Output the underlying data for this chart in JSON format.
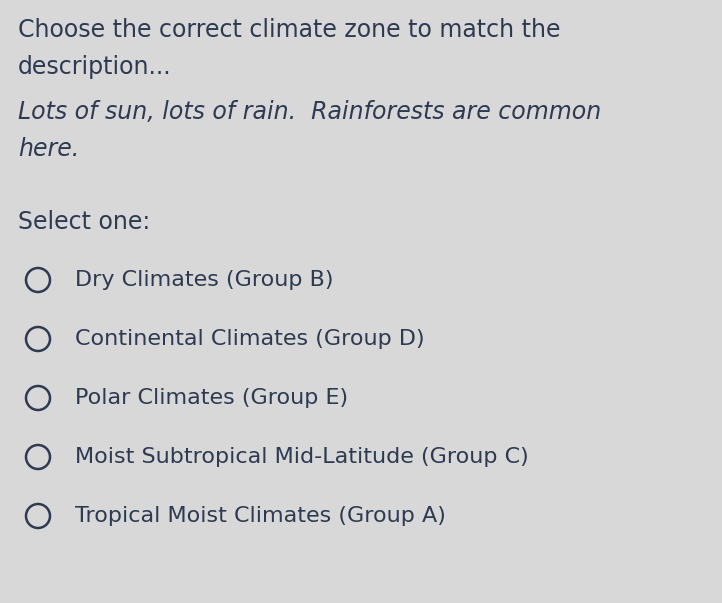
{
  "background_color": "#d8d8d8",
  "title_line1": "Choose the correct climate zone to match the",
  "title_line2": "description...",
  "desc_line1": "Lots of sun, lots of rain.  Rainforests are common",
  "desc_line2": "here.",
  "select_label": "Select one:",
  "options": [
    "Dry Climates (Group B)",
    "Continental Climates (Group D)",
    "Polar Climates (Group E)",
    "Moist Subtropical Mid-Latitude (Group C)",
    "Tropical Moist Climates (Group A)"
  ],
  "title_fontsize": 17,
  "desc_fontsize": 17,
  "select_fontsize": 17,
  "option_fontsize": 16,
  "text_color": "#2d3a52",
  "circle_color": "#2d3a52",
  "fig_width": 7.22,
  "fig_height": 6.03,
  "dpi": 100
}
